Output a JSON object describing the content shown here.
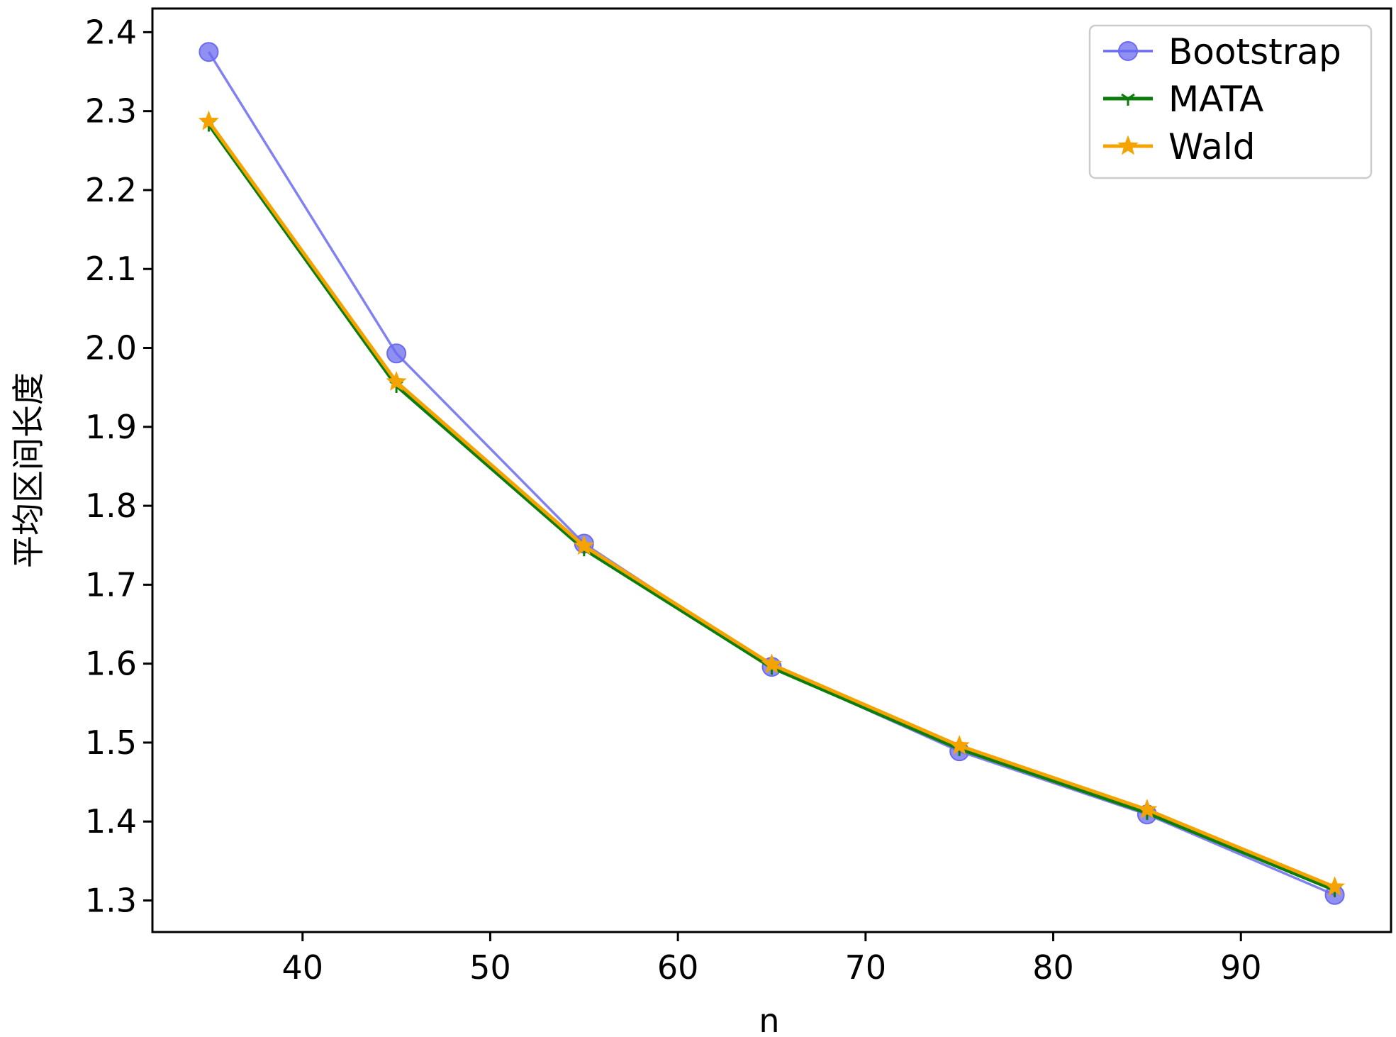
{
  "chart_data": {
    "type": "line",
    "title": "",
    "xlabel": "n",
    "ylabel": "平均区间长度",
    "xlim": [
      32,
      98
    ],
    "ylim": [
      1.26,
      2.43
    ],
    "x_ticks": [
      "40",
      "50",
      "60",
      "70",
      "80",
      "90"
    ],
    "y_ticks": [
      "1.3",
      "1.4",
      "1.5",
      "1.6",
      "1.7",
      "1.8",
      "1.9",
      "2.0",
      "2.1",
      "2.2",
      "2.3",
      "2.4"
    ],
    "grid": false,
    "legend_position": "top-right",
    "x": [
      35,
      45,
      55,
      65,
      75,
      85,
      95
    ],
    "series": [
      {
        "name": "Bootstrap",
        "color": "#6b6bef",
        "marker": "circle",
        "values": [
          2.375,
          1.993,
          1.752,
          1.596,
          1.489,
          1.409,
          1.307
        ]
      },
      {
        "name": "MATA",
        "color": "#0a7d0a",
        "marker": "tri",
        "values": [
          2.283,
          1.952,
          1.745,
          1.595,
          1.492,
          1.411,
          1.313
        ]
      },
      {
        "name": "Wald",
        "color": "#f5a300",
        "marker": "star",
        "values": [
          2.287,
          1.957,
          1.749,
          1.599,
          1.496,
          1.415,
          1.317
        ]
      }
    ]
  }
}
